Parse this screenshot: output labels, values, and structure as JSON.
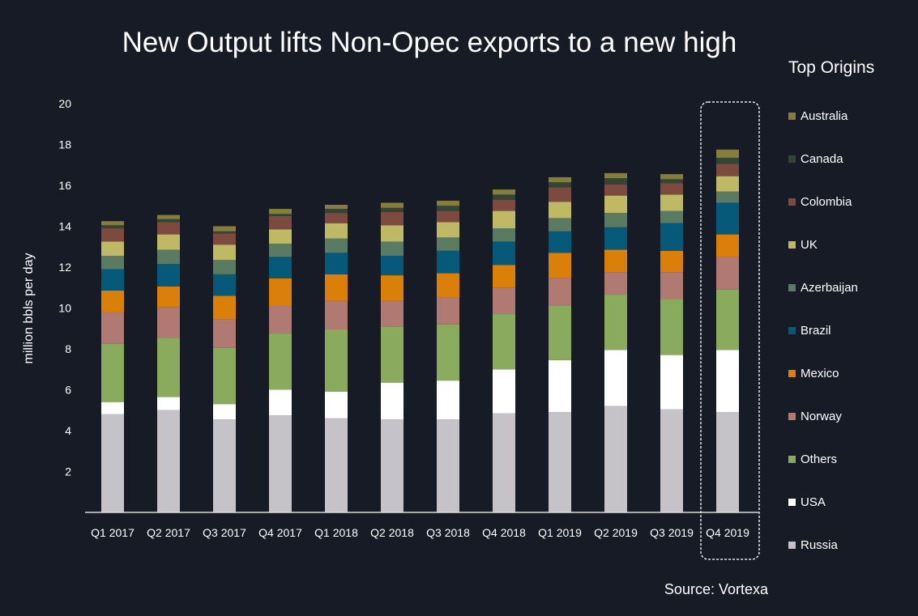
{
  "chart_data": {
    "type": "bar",
    "stacked": true,
    "title": "New Output lifts Non-Opec exports to a new high",
    "xlabel": "",
    "ylabel": "million bbls per day",
    "ylim": [
      0,
      20
    ],
    "yticks": [
      2,
      4,
      6,
      8,
      10,
      12,
      14,
      16,
      18,
      20
    ],
    "grid": false,
    "legend_title": "Top Origins",
    "legend_placement": "right",
    "highlight_category": "Q4 2019",
    "source": "Source:  Vortexa",
    "categories": [
      "Q1 2017",
      "Q2 2017",
      "Q3 2017",
      "Q4 2017",
      "Q1 2018",
      "Q2 2018",
      "Q3 2018",
      "Q4 2018",
      "Q1 2019",
      "Q2 2019",
      "Q3 2019",
      "Q4 2019"
    ],
    "series": [
      {
        "name": "Russia",
        "color": "#c6c3c8",
        "values": [
          4.8,
          5.0,
          4.55,
          4.75,
          4.6,
          4.55,
          4.55,
          4.85,
          4.9,
          5.2,
          5.05,
          4.9
        ]
      },
      {
        "name": "USA",
        "color": "#ffffff",
        "values": [
          0.6,
          0.65,
          0.75,
          1.25,
          1.3,
          1.8,
          1.9,
          2.15,
          2.55,
          2.75,
          2.65,
          3.05
        ]
      },
      {
        "name": "Others",
        "color": "#8aab5e",
        "values": [
          2.85,
          2.9,
          2.75,
          2.75,
          3.05,
          2.75,
          2.75,
          2.7,
          2.65,
          2.7,
          2.75,
          2.95
        ]
      },
      {
        "name": "Norway",
        "color": "#b07a72",
        "values": [
          1.55,
          1.5,
          1.4,
          1.35,
          1.4,
          1.25,
          1.3,
          1.3,
          1.35,
          1.1,
          1.3,
          1.6
        ]
      },
      {
        "name": "Mexico",
        "color": "#d97f0a",
        "values": [
          1.05,
          1.0,
          1.15,
          1.35,
          1.3,
          1.25,
          1.2,
          1.1,
          1.25,
          1.1,
          1.05,
          1.1
        ]
      },
      {
        "name": "Brazil",
        "color": "#07597a",
        "values": [
          1.05,
          1.1,
          1.05,
          1.05,
          1.05,
          0.95,
          1.1,
          1.15,
          1.05,
          1.1,
          1.35,
          1.55
        ]
      },
      {
        "name": "Azerbaijan",
        "color": "#5a7a62",
        "values": [
          0.65,
          0.7,
          0.7,
          0.65,
          0.7,
          0.7,
          0.65,
          0.65,
          0.65,
          0.7,
          0.6,
          0.55
        ]
      },
      {
        "name": "UK",
        "color": "#bfb864",
        "values": [
          0.7,
          0.75,
          0.75,
          0.7,
          0.75,
          0.8,
          0.75,
          0.85,
          0.8,
          0.85,
          0.8,
          0.75
        ]
      },
      {
        "name": "Colombia",
        "color": "#7d4a40",
        "values": [
          0.65,
          0.6,
          0.55,
          0.65,
          0.5,
          0.65,
          0.55,
          0.55,
          0.7,
          0.55,
          0.55,
          0.6
        ]
      },
      {
        "name": "Canada",
        "color": "#334535",
        "values": [
          0.15,
          0.15,
          0.1,
          0.1,
          0.2,
          0.2,
          0.25,
          0.25,
          0.25,
          0.3,
          0.2,
          0.3
        ]
      },
      {
        "name": "Australia",
        "color": "#857c3e",
        "values": [
          0.2,
          0.2,
          0.25,
          0.25,
          0.2,
          0.25,
          0.25,
          0.25,
          0.25,
          0.25,
          0.25,
          0.4
        ]
      }
    ],
    "colors": {
      "background": "#161b26",
      "axis": "#d9d9d9",
      "text": "#ffffff"
    }
  }
}
